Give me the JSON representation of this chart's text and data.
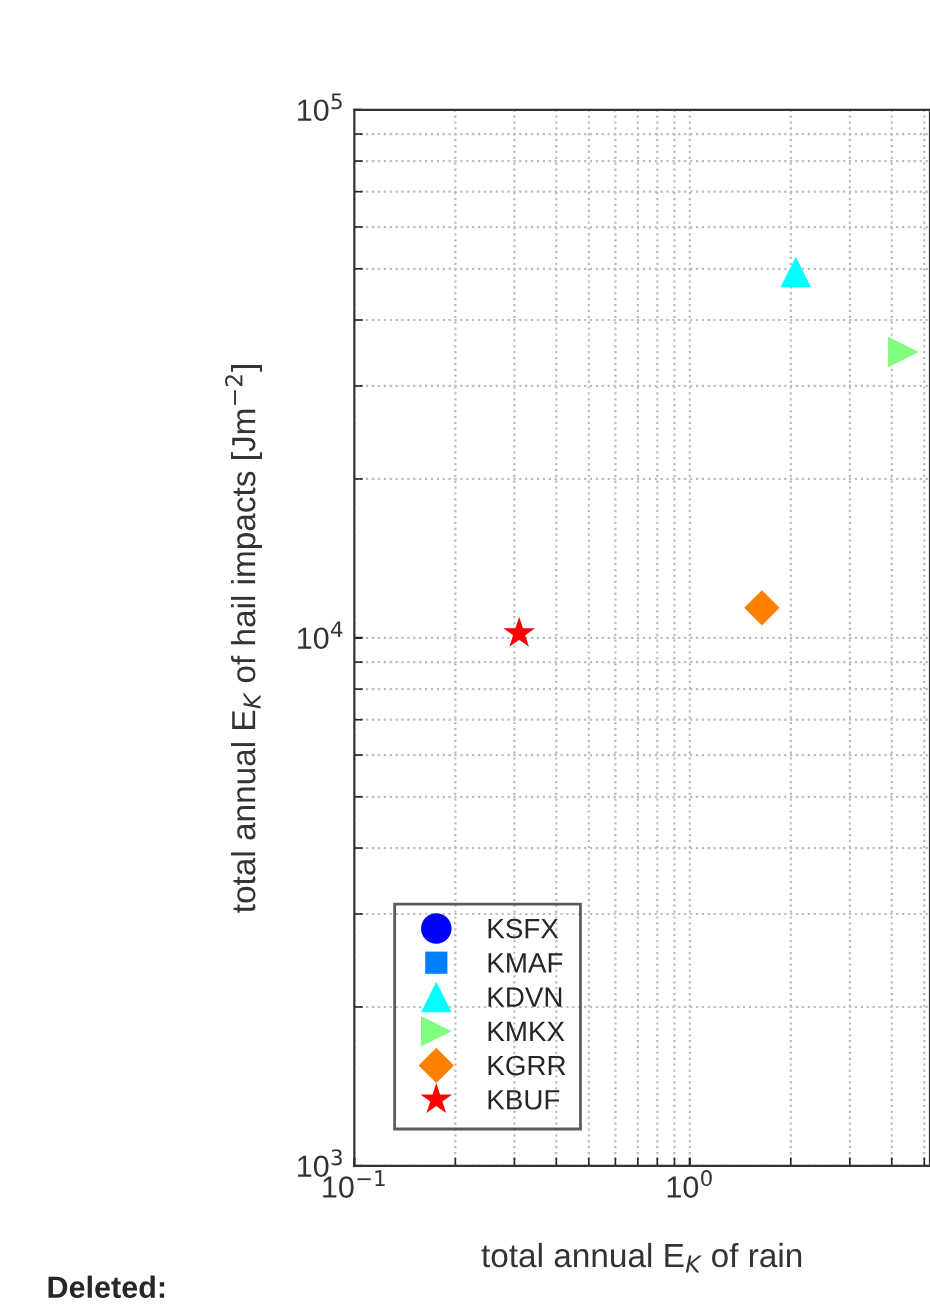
{
  "chart_data": {
    "type": "scatter",
    "xlabel": "total annual E$_{K}$ of rain",
    "ylabel": "total annual E$_{K}$ of hail impacts [Jm$^{−2}$]",
    "log": "xy",
    "xlim": [
      0.1,
      5.2
    ],
    "ylim": [
      1000,
      100000
    ],
    "xticks": [
      {
        "value": 0.1,
        "label": "10$^{−1}$"
      },
      {
        "value": 1,
        "label": "10$^{0}$"
      }
    ],
    "yticks": [
      {
        "value": 1000,
        "label": "10$^{3}$"
      },
      {
        "value": 10000,
        "label": "10$^{4}$"
      },
      {
        "value": 100000,
        "label": "10$^{5}$"
      }
    ],
    "grid": true,
    "legend": "bottom left",
    "annotations": [
      "Deleted:"
    ],
    "series": [
      {
        "name": "KSFX",
        "color": "#0000ff",
        "marker": "circle"
      },
      {
        "name": "KMAF",
        "color": "#0080ff",
        "marker": "square"
      },
      {
        "name": "KDVN",
        "color": "#00ffff",
        "marker": "triangle",
        "x": [
          2.07
        ],
        "values": [
          49300
        ]
      },
      {
        "name": "KMKX",
        "color": "#80ff80",
        "marker": "triangle-right",
        "x": [
          4.33
        ],
        "values": [
          34800
        ]
      },
      {
        "name": "KGRR",
        "color": "#ff8000",
        "marker": "diamond",
        "x": [
          1.64
        ],
        "values": [
          11400
        ]
      },
      {
        "name": "KBUF",
        "color": "#ff0000",
        "marker": "star",
        "x": [
          0.31
        ],
        "values": [
          10200
        ]
      }
    ]
  }
}
